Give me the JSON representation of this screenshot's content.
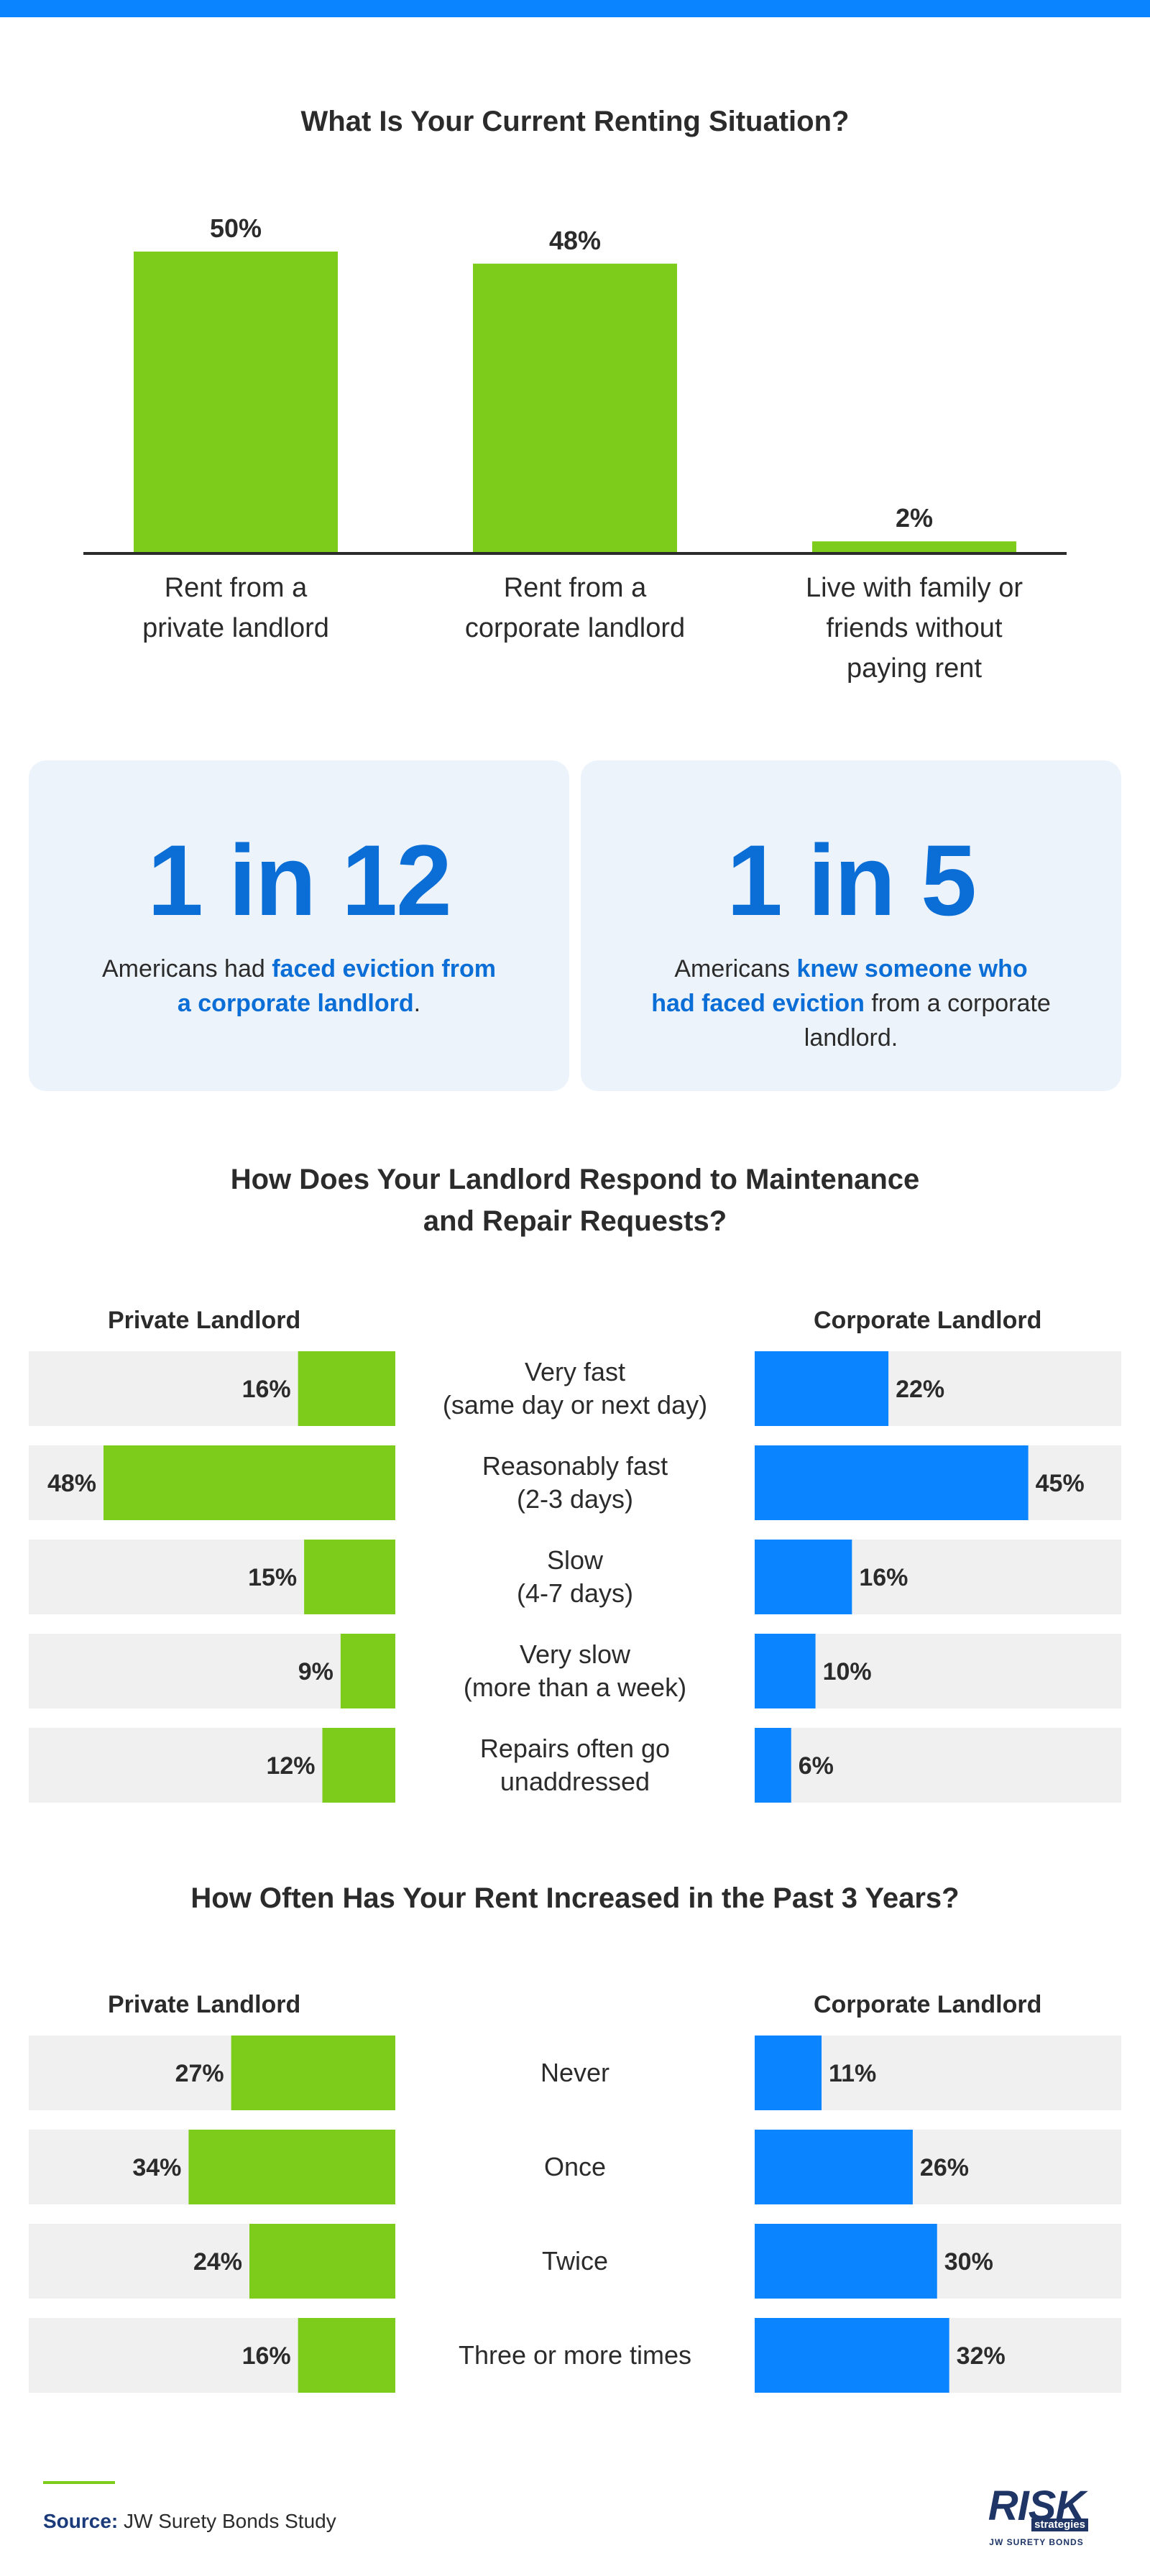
{
  "chart1": {
    "title": "What Is Your Current Renting Situation?",
    "colors": {
      "bar": "#7dcc1c",
      "axis": "#2b2b2b"
    }
  },
  "stats": [
    {
      "big": "1 in 12",
      "pre": "Americans had ",
      "highlight": "faced eviction from a corporate landlord",
      "post": "."
    },
    {
      "big": "1 in 5",
      "pre": "Americans ",
      "highlight": "knew someone who had faced eviction",
      "post": " from a corporate landlord."
    }
  ],
  "chart2": {
    "title_line1": "How Does Your Landlord Respond to Maintenance",
    "title_line2": "and Repair Requests?",
    "left_header": "Private Landlord",
    "right_header": "Corporate Landlord"
  },
  "chart3": {
    "title": "How Often Has Your Rent Increased in the Past 3 Years?",
    "left_header": "Private Landlord",
    "right_header": "Corporate Landlord"
  },
  "colors": {
    "private": "#7dcc1c",
    "corporate": "#0a84ff",
    "track": "#f0f0f0",
    "text": "#2b2b2b",
    "accent": "#0a6ed6"
  },
  "footer": {
    "source_label": "Source:",
    "source_text": "JW Surety Bonds Study",
    "logo_main": "RISK",
    "logo_sub1": "strategies",
    "logo_sub2": "JW SURETY BONDS"
  },
  "chart_data": [
    {
      "type": "bar",
      "title": "What Is Your Current Renting Situation?",
      "categories": [
        [
          "Rent from a",
          "private landlord"
        ],
        [
          "Rent from a",
          "corporate landlord"
        ],
        [
          "Live with family or",
          "friends without",
          "paying rent"
        ]
      ],
      "values": [
        50,
        48,
        2
      ],
      "value_labels": [
        "50%",
        "48%",
        "2%"
      ],
      "ylim": [
        0,
        50
      ],
      "grid": false
    },
    {
      "type": "bar",
      "orientation": "horizontal-butterfly",
      "title": "How Does Your Landlord Respond to Maintenance and Repair Requests?",
      "categories": [
        [
          "Very fast",
          "(same day or next day)"
        ],
        [
          "Reasonably fast",
          "(2-3 days)"
        ],
        [
          "Slow",
          "(4-7 days)"
        ],
        [
          "Very slow",
          "(more than a week)"
        ],
        [
          "Repairs often go",
          "unaddressed"
        ]
      ],
      "series": [
        {
          "name": "Private Landlord",
          "values": [
            16,
            48,
            15,
            9,
            12
          ],
          "labels": [
            "16%",
            "48%",
            "15%",
            "9%",
            "12%"
          ]
        },
        {
          "name": "Corporate Landlord",
          "values": [
            22,
            45,
            16,
            10,
            6
          ],
          "labels": [
            "22%",
            "45%",
            "16%",
            "10%",
            "6%"
          ]
        }
      ],
      "xlim": [
        0,
        52
      ]
    },
    {
      "type": "bar",
      "orientation": "horizontal-butterfly",
      "title": "How Often Has Your Rent Increased in the Past 3 Years?",
      "categories": [
        [
          "Never"
        ],
        [
          "Once"
        ],
        [
          "Twice"
        ],
        [
          "Three or more times"
        ]
      ],
      "series": [
        {
          "name": "Private Landlord",
          "values": [
            27,
            34,
            24,
            16
          ],
          "labels": [
            "27%",
            "34%",
            "24%",
            "16%"
          ]
        },
        {
          "name": "Corporate Landlord",
          "values": [
            11,
            26,
            30,
            32
          ],
          "labels": [
            "11%",
            "26%",
            "30%",
            "32%"
          ]
        }
      ],
      "xlim": [
        0,
        52
      ]
    }
  ]
}
